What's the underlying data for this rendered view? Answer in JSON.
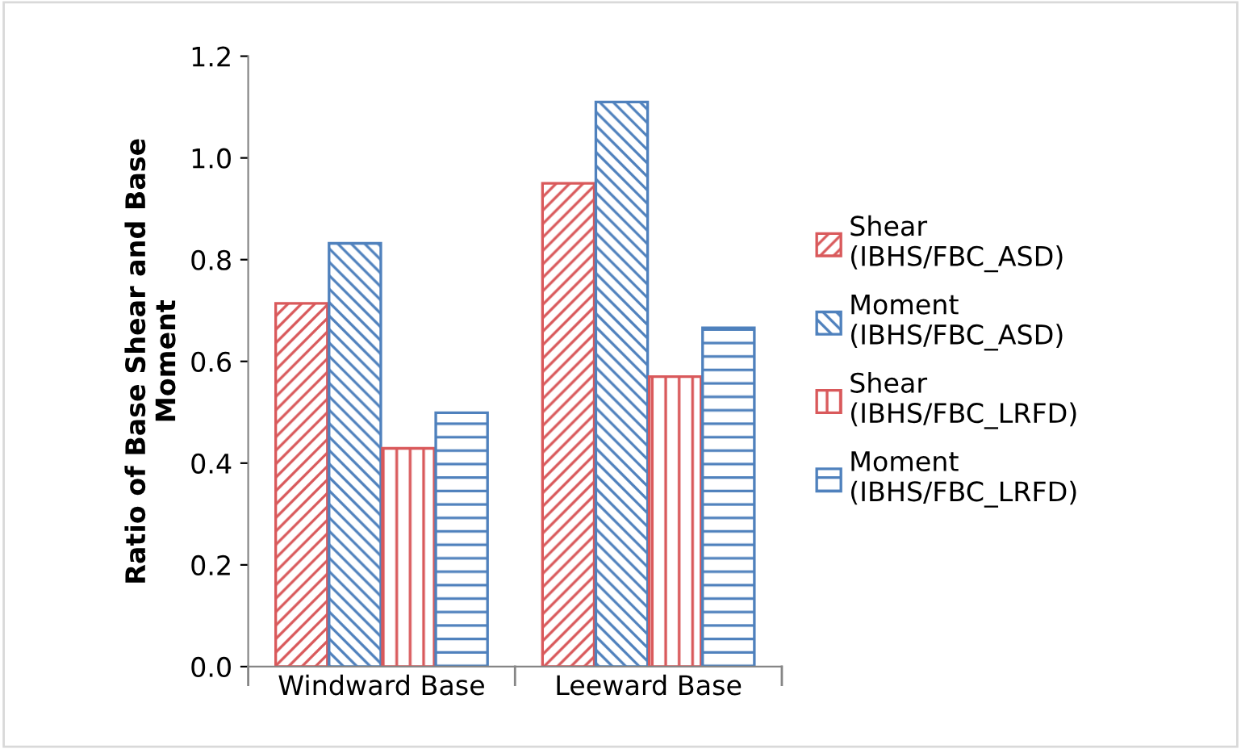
{
  "chart_data": {
    "type": "bar",
    "ylabel": "Ratio of Base Shear and Base\nMoment",
    "categories": [
      "Windward Base",
      "Leeward Base"
    ],
    "series": [
      {
        "name": "Shear\n(IBHS/FBC_ASD)",
        "color": "#d9595b",
        "values": [
          0.714,
          0.95
        ]
      },
      {
        "name": "Moment\n(IBHS/FBC_ASD)",
        "color": "#4f81bd",
        "values": [
          0.832,
          1.11
        ]
      },
      {
        "name": "Shear\n(IBHS/FBC_LRFD)",
        "color": "#d9595b",
        "values": [
          0.429,
          0.57
        ]
      },
      {
        "name": "Moment\n(IBHS/FBC_LRFD)",
        "color": "#4f81bd",
        "values": [
          0.499,
          0.666
        ]
      }
    ],
    "ylim": [
      0,
      1.2
    ],
    "yticks": [
      {
        "value": 0,
        "label": "0.0"
      },
      {
        "value": 0.2,
        "label": "0.2"
      },
      {
        "value": 0.4,
        "label": "0.4"
      },
      {
        "value": 0.6,
        "label": "0.6"
      },
      {
        "value": 0.8,
        "label": "0.8"
      },
      {
        "value": 1.0,
        "label": "1.0"
      },
      {
        "value": 1.2,
        "label": "1.2"
      }
    ],
    "grid": false,
    "legend": "right"
  }
}
